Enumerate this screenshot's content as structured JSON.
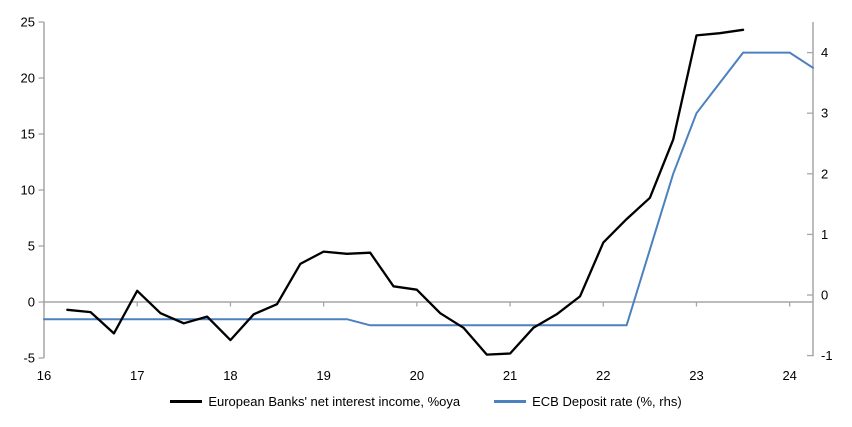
{
  "chart": {
    "legend": [
      {
        "label": "European Banks' net interest income, %oya",
        "color": "#000000"
      },
      {
        "label": "ECB Deposit rate (%, rhs)",
        "color": "#4C81BF"
      }
    ],
    "colors": {
      "axis_gray": "#A6A6A6",
      "zero_line_gray": "#A6A6A6",
      "series_black": "#000000",
      "series_blue": "#4C81BF"
    },
    "chart_data": {
      "type": "line",
      "grid": "zero-line-only",
      "legend_position": "bottom",
      "x_axis": {
        "min": 16,
        "max": 24.25,
        "ticks": [
          16,
          17,
          18,
          19,
          20,
          21,
          22,
          23,
          24
        ],
        "labels": [
          "16",
          "17",
          "18",
          "19",
          "20",
          "21",
          "22",
          "23",
          "24"
        ]
      },
      "left_axis": {
        "min": -5,
        "max": 25,
        "ticks": [
          25,
          20,
          15,
          10,
          5,
          0,
          -5
        ],
        "labels": [
          "25",
          "20",
          "15",
          "10",
          "5",
          "0",
          "-5"
        ]
      },
      "right_axis": {
        "min": -1,
        "max": 4.55,
        "ticks": [
          4,
          3,
          2,
          1,
          0,
          -1
        ],
        "labels": [
          "4",
          "3",
          "2",
          "1",
          "0",
          "-1"
        ]
      },
      "series": [
        {
          "name": "European Banks' net interest income, %oya",
          "axis": "left",
          "color": "#000000",
          "x": [
            16.25,
            16.5,
            16.75,
            17,
            17.25,
            17.5,
            17.75,
            18,
            18.25,
            18.5,
            18.75,
            19,
            19.25,
            19.5,
            19.75,
            20,
            20.25,
            20.5,
            20.75,
            21,
            21.25,
            21.5,
            21.75,
            22,
            22.25,
            22.5,
            22.75,
            23,
            23.25,
            23.5
          ],
          "values": [
            -0.7,
            -0.9,
            -2.8,
            1.0,
            -1.0,
            -1.9,
            -1.3,
            -3.4,
            -1.1,
            -0.2,
            3.4,
            4.5,
            4.3,
            4.4,
            1.4,
            1.1,
            -1.0,
            -2.3,
            -4.7,
            -4.6,
            -2.3,
            -1.1,
            0.5,
            5.3,
            7.4,
            9.3,
            14.5,
            23.8,
            24.0,
            24.3
          ]
        },
        {
          "name": "ECB Deposit rate (%, rhs)",
          "axis": "right",
          "color": "#4C81BF",
          "x": [
            16,
            16.25,
            16.5,
            16.75,
            17,
            17.25,
            17.5,
            17.75,
            18,
            18.25,
            18.5,
            18.75,
            19,
            19.25,
            19.5,
            19.75,
            20,
            20.25,
            20.5,
            20.75,
            21,
            21.25,
            21.5,
            21.75,
            22,
            22.25,
            22.5,
            22.75,
            23,
            23.25,
            23.5,
            23.75,
            24,
            24.25
          ],
          "values": [
            -0.4,
            -0.4,
            -0.4,
            -0.4,
            -0.4,
            -0.4,
            -0.4,
            -0.4,
            -0.4,
            -0.4,
            -0.4,
            -0.4,
            -0.4,
            -0.4,
            -0.5,
            -0.5,
            -0.5,
            -0.5,
            -0.5,
            -0.5,
            -0.5,
            -0.5,
            -0.5,
            -0.5,
            -0.5,
            -0.5,
            0.75,
            2.0,
            3.0,
            3.5,
            4.0,
            4.0,
            4.0,
            3.75
          ]
        }
      ]
    }
  }
}
